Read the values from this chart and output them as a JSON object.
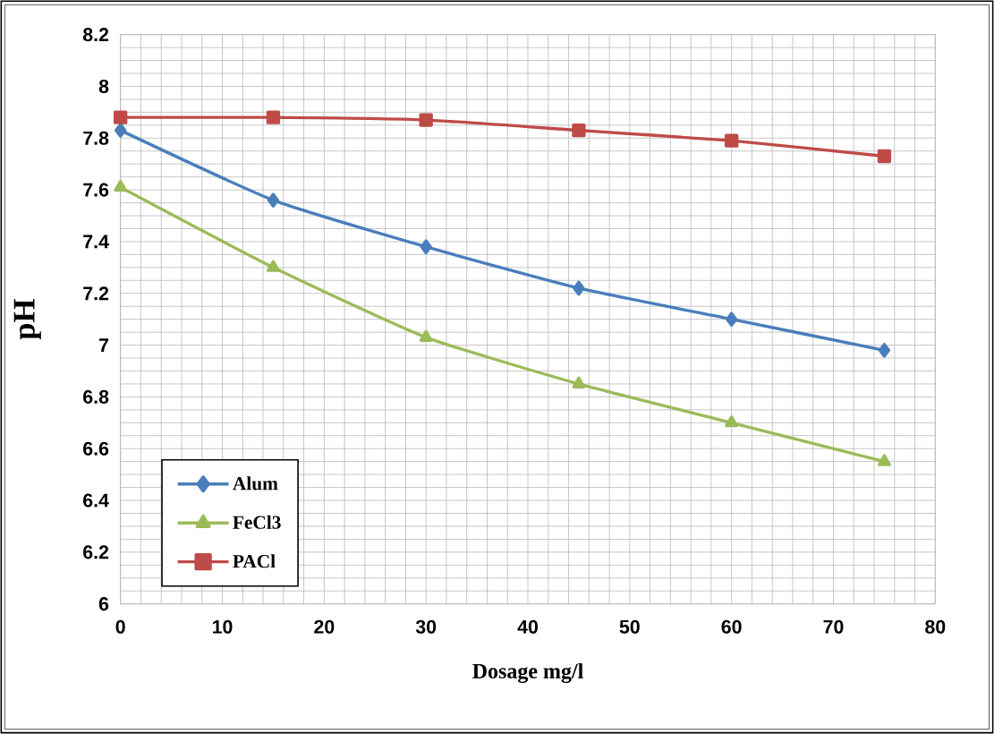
{
  "chart_data": {
    "type": "line",
    "xlabel": "Dosage mg/l",
    "ylabel": "pH",
    "x": [
      0,
      15,
      30,
      45,
      60,
      75
    ],
    "series": [
      {
        "name": "Alum",
        "color": "#4a7ebb",
        "marker": "diamond",
        "values": [
          7.83,
          7.56,
          7.38,
          7.22,
          7.1,
          6.98
        ]
      },
      {
        "name": "FeCl3",
        "color": "#9bbb59",
        "marker": "triangle",
        "values": [
          7.61,
          7.3,
          7.03,
          6.85,
          6.7,
          6.55
        ]
      },
      {
        "name": "PACl",
        "color": "#be4b48",
        "marker": "square",
        "values": [
          7.88,
          7.88,
          7.87,
          7.83,
          7.79,
          7.73
        ]
      }
    ],
    "xlim": [
      0,
      80
    ],
    "xticks": [
      0,
      10,
      20,
      30,
      40,
      50,
      60,
      70,
      80
    ],
    "ylim": [
      6,
      8.2
    ],
    "yticks": [
      6,
      6.2,
      6.4,
      6.6,
      6.8,
      7,
      7.2,
      7.4,
      7.6,
      7.8,
      8,
      8.2
    ],
    "grid": true,
    "legend": "bottom left",
    "line_style": "solid"
  }
}
